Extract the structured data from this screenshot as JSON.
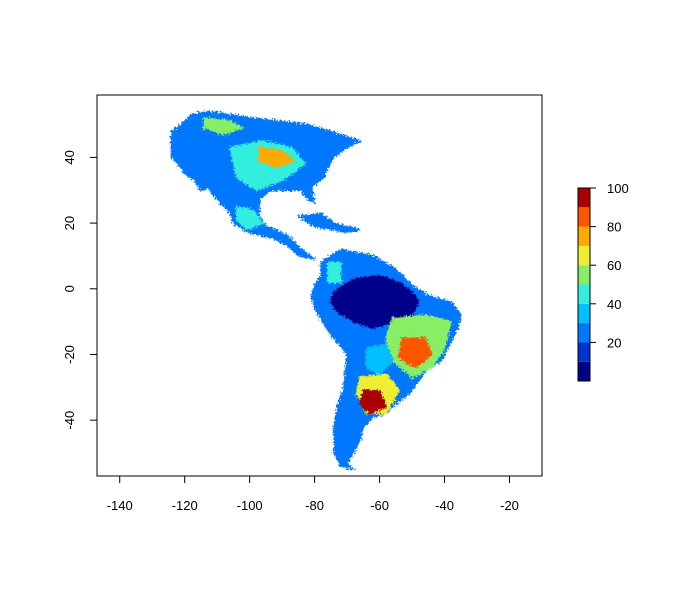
{
  "chart_data": {
    "type": "heatmap",
    "title": "",
    "xlabel": "",
    "ylabel": "",
    "xlim": [
      -147,
      -10
    ],
    "ylim": [
      -57,
      59
    ],
    "x_ticks": [
      {
        "value": -140,
        "label": "-140"
      },
      {
        "value": -120,
        "label": "-120"
      },
      {
        "value": -100,
        "label": "-100"
      },
      {
        "value": -80,
        "label": "-80"
      },
      {
        "value": -60,
        "label": "-60"
      },
      {
        "value": -40,
        "label": "-40"
      },
      {
        "value": -20,
        "label": "-20"
      }
    ],
    "y_ticks": [
      {
        "value": 40,
        "label": "40"
      },
      {
        "value": 20,
        "label": "20"
      },
      {
        "value": 0,
        "label": "0"
      },
      {
        "value": -20,
        "label": "-20"
      },
      {
        "value": -40,
        "label": "-40"
      }
    ],
    "colorbar": {
      "range": [
        0,
        100
      ],
      "ticks": [
        {
          "value": 100,
          "label": "100"
        },
        {
          "value": 80,
          "label": "80"
        },
        {
          "value": 60,
          "label": "60"
        },
        {
          "value": 40,
          "label": "40"
        },
        {
          "value": 20,
          "label": "20"
        }
      ],
      "bins": [
        {
          "from": 0,
          "to": 10,
          "color": "#00008b"
        },
        {
          "from": 10,
          "to": 20,
          "color": "#0033cc"
        },
        {
          "from": 20,
          "to": 30,
          "color": "#0077ff"
        },
        {
          "from": 30,
          "to": 40,
          "color": "#00bfff"
        },
        {
          "from": 40,
          "to": 50,
          "color": "#33eedd"
        },
        {
          "from": 50,
          "to": 60,
          "color": "#88ee66"
        },
        {
          "from": 60,
          "to": 70,
          "color": "#eeee33"
        },
        {
          "from": 70,
          "to": 80,
          "color": "#ffaa00"
        },
        {
          "from": 80,
          "to": 90,
          "color": "#ff5500"
        },
        {
          "from": 90,
          "to": 100,
          "color": "#aa0000"
        }
      ]
    },
    "regions": [
      {
        "name": "north-america",
        "level": 20,
        "outline": [
          [
            -113,
            54
          ],
          [
            -99,
            52
          ],
          [
            -82,
            50
          ],
          [
            -72,
            47
          ],
          [
            -66,
            45
          ],
          [
            -70,
            43
          ],
          [
            -74,
            40
          ],
          [
            -76,
            37
          ],
          [
            -77,
            34
          ],
          [
            -81,
            31
          ],
          [
            -80,
            26
          ],
          [
            -82,
            27
          ],
          [
            -84,
            30
          ],
          [
            -89,
            30
          ],
          [
            -94,
            30
          ],
          [
            -97,
            27
          ],
          [
            -97,
            22
          ],
          [
            -95,
            19
          ],
          [
            -92,
            18
          ],
          [
            -88,
            16
          ],
          [
            -84,
            12
          ],
          [
            -80,
            9
          ],
          [
            -85,
            10
          ],
          [
            -88,
            13
          ],
          [
            -92,
            15
          ],
          [
            -95,
            16
          ],
          [
            -100,
            17
          ],
          [
            -105,
            20
          ],
          [
            -106,
            23
          ],
          [
            -109,
            26
          ],
          [
            -113,
            31
          ],
          [
            -115,
            30
          ],
          [
            -117,
            33
          ],
          [
            -120,
            35
          ],
          [
            -122,
            38
          ],
          [
            -124,
            40
          ],
          [
            -124,
            45
          ],
          [
            -124,
            48
          ],
          [
            -121,
            50
          ],
          [
            -118,
            53
          ]
        ]
      },
      {
        "name": "south-america",
        "level": 20,
        "outline": [
          [
            -78,
            8
          ],
          [
            -72,
            12
          ],
          [
            -62,
            10
          ],
          [
            -55,
            6
          ],
          [
            -50,
            1
          ],
          [
            -45,
            -2
          ],
          [
            -38,
            -4
          ],
          [
            -35,
            -8
          ],
          [
            -36,
            -12
          ],
          [
            -39,
            -18
          ],
          [
            -41,
            -22
          ],
          [
            -45,
            -24
          ],
          [
            -48,
            -28
          ],
          [
            -51,
            -32
          ],
          [
            -55,
            -35
          ],
          [
            -58,
            -38
          ],
          [
            -62,
            -39
          ],
          [
            -65,
            -42
          ],
          [
            -66,
            -46
          ],
          [
            -68,
            -50
          ],
          [
            -70,
            -53
          ],
          [
            -68,
            -55
          ],
          [
            -72,
            -54
          ],
          [
            -74,
            -50
          ],
          [
            -74,
            -42
          ],
          [
            -73,
            -36
          ],
          [
            -71,
            -30
          ],
          [
            -70,
            -20
          ],
          [
            -75,
            -14
          ],
          [
            -80,
            -6
          ],
          [
            -81,
            -2
          ],
          [
            -80,
            1
          ],
          [
            -78,
            4
          ]
        ]
      },
      {
        "name": "amazon-lowland",
        "level": 5,
        "outline": [
          [
            -74,
            -1
          ],
          [
            -68,
            3
          ],
          [
            -60,
            4
          ],
          [
            -54,
            2
          ],
          [
            -50,
            -1
          ],
          [
            -48,
            -4
          ],
          [
            -50,
            -8
          ],
          [
            -55,
            -10
          ],
          [
            -62,
            -12
          ],
          [
            -68,
            -10
          ],
          [
            -73,
            -7
          ],
          [
            -75,
            -4
          ]
        ]
      },
      {
        "name": "great-plains",
        "level": 45,
        "outline": [
          [
            -106,
            43
          ],
          [
            -96,
            45
          ],
          [
            -87,
            43
          ],
          [
            -83,
            38
          ],
          [
            -90,
            33
          ],
          [
            -98,
            30
          ],
          [
            -104,
            34
          ]
        ]
      },
      {
        "name": "canadian-prairie",
        "level": 55,
        "outline": [
          [
            -114,
            52
          ],
          [
            -106,
            51
          ],
          [
            -102,
            49
          ],
          [
            -108,
            47
          ],
          [
            -114,
            49
          ]
        ]
      },
      {
        "name": "corn-belt",
        "level": 70,
        "outline": [
          [
            -97,
            43
          ],
          [
            -90,
            42
          ],
          [
            -86,
            39
          ],
          [
            -92,
            37
          ],
          [
            -97,
            39
          ]
        ]
      },
      {
        "name": "mexican-highlands",
        "level": 45,
        "outline": [
          [
            -104,
            25
          ],
          [
            -99,
            24
          ],
          [
            -96,
            20
          ],
          [
            -101,
            18
          ],
          [
            -104,
            21
          ]
        ]
      },
      {
        "name": "brazil-highlands",
        "level": 55,
        "outline": [
          [
            -56,
            -9
          ],
          [
            -46,
            -8
          ],
          [
            -38,
            -10
          ],
          [
            -40,
            -18
          ],
          [
            -44,
            -24
          ],
          [
            -50,
            -27
          ],
          [
            -56,
            -22
          ],
          [
            -58,
            -15
          ]
        ]
      },
      {
        "name": "sao-paulo-core",
        "level": 85,
        "outline": [
          [
            -53,
            -15
          ],
          [
            -46,
            -15
          ],
          [
            -44,
            -20
          ],
          [
            -49,
            -24
          ],
          [
            -54,
            -21
          ]
        ]
      },
      {
        "name": "pampas",
        "level": 60,
        "outline": [
          [
            -66,
            -27
          ],
          [
            -58,
            -26
          ],
          [
            -54,
            -31
          ],
          [
            -58,
            -38
          ],
          [
            -64,
            -38
          ],
          [
            -67,
            -32
          ]
        ]
      },
      {
        "name": "pampas-core",
        "level": 90,
        "outline": [
          [
            -65,
            -31
          ],
          [
            -60,
            -31
          ],
          [
            -58,
            -36
          ],
          [
            -63,
            -38
          ],
          [
            -66,
            -35
          ]
        ]
      },
      {
        "name": "chaco",
        "level": 35,
        "outline": [
          [
            -64,
            -18
          ],
          [
            -58,
            -17
          ],
          [
            -56,
            -22
          ],
          [
            -60,
            -26
          ],
          [
            -64,
            -24
          ]
        ]
      },
      {
        "name": "greater-antilles",
        "level": 25,
        "outline": [
          [
            -85,
            22
          ],
          [
            -78,
            23
          ],
          [
            -74,
            20
          ],
          [
            -66,
            18
          ],
          [
            -70,
            17
          ],
          [
            -80,
            19
          ]
        ]
      },
      {
        "name": "colombia-andes",
        "level": 45,
        "outline": [
          [
            -76,
            8
          ],
          [
            -72,
            8
          ],
          [
            -72,
            2
          ],
          [
            -76,
            2
          ]
        ]
      }
    ]
  }
}
